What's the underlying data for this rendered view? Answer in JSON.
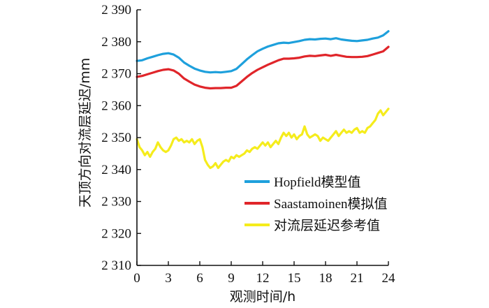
{
  "chart_data": {
    "type": "line",
    "title": "",
    "xlabel": "观测时间/h",
    "ylabel": "天顶方向对流层延迟/mm",
    "xlim": [
      0,
      24
    ],
    "ylim": [
      2310,
      2390
    ],
    "xticks": [
      0,
      3,
      6,
      9,
      12,
      15,
      18,
      21,
      24
    ],
    "xtick_labels": [
      "0",
      "3",
      "6",
      "9",
      "12",
      "15",
      "18",
      "21",
      "24"
    ],
    "yticks": [
      2310,
      2320,
      2330,
      2340,
      2350,
      2360,
      2370,
      2380,
      2390
    ],
    "ytick_labels": [
      "2 310",
      "2 320",
      "2 330",
      "2 340",
      "2 350",
      "2 360",
      "2 370",
      "2 380",
      "2 390"
    ],
    "grid": false,
    "legend_position": "lower-right",
    "series": [
      {
        "name": "Hopfield模型值",
        "color": "#1ea0dc",
        "x": [
          0,
          0.5,
          1,
          1.5,
          2,
          2.5,
          3,
          3.5,
          4,
          4.5,
          5,
          5.5,
          6,
          6.5,
          7,
          7.5,
          8,
          8.5,
          9,
          9.5,
          10,
          10.5,
          11,
          11.5,
          12,
          12.5,
          13,
          13.5,
          14,
          14.5,
          15,
          15.5,
          16,
          16.5,
          17,
          17.5,
          18,
          18.5,
          19,
          19.5,
          20,
          20.5,
          21,
          21.5,
          22,
          22.5,
          23,
          23.5,
          24
        ],
        "y": [
          2374.0,
          2374.2,
          2374.8,
          2375.3,
          2375.8,
          2376.2,
          2376.4,
          2376.0,
          2375.0,
          2373.5,
          2372.5,
          2371.6,
          2371.0,
          2370.6,
          2370.4,
          2370.5,
          2370.4,
          2370.6,
          2370.8,
          2371.5,
          2373.0,
          2374.5,
          2375.8,
          2377.0,
          2377.8,
          2378.5,
          2379.0,
          2379.5,
          2379.7,
          2379.6,
          2379.9,
          2380.2,
          2380.6,
          2380.8,
          2380.7,
          2380.9,
          2381.0,
          2380.8,
          2381.1,
          2380.7,
          2380.5,
          2380.3,
          2380.2,
          2380.4,
          2380.6,
          2381.0,
          2381.3,
          2382.0,
          2383.3
        ]
      },
      {
        "name": "Saastamoinen模拟值",
        "color": "#e0252a",
        "x": [
          0,
          0.5,
          1,
          1.5,
          2,
          2.5,
          3,
          3.5,
          4,
          4.5,
          5,
          5.5,
          6,
          6.5,
          7,
          7.5,
          8,
          8.5,
          9,
          9.5,
          10,
          10.5,
          11,
          11.5,
          12,
          12.5,
          13,
          13.5,
          14,
          14.5,
          15,
          15.5,
          16,
          16.5,
          17,
          17.5,
          18,
          18.5,
          19,
          19.5,
          20,
          20.5,
          21,
          21.5,
          22,
          22.5,
          23,
          23.5,
          24
        ],
        "y": [
          2369.0,
          2369.3,
          2369.8,
          2370.3,
          2370.8,
          2371.2,
          2371.4,
          2371.0,
          2370.0,
          2368.5,
          2367.5,
          2366.6,
          2366.0,
          2365.6,
          2365.4,
          2365.5,
          2365.5,
          2365.6,
          2365.6,
          2366.2,
          2367.6,
          2369.0,
          2370.2,
          2371.2,
          2372.0,
          2372.8,
          2373.5,
          2374.2,
          2374.7,
          2374.7,
          2374.8,
          2375.0,
          2375.4,
          2375.6,
          2375.5,
          2375.7,
          2375.9,
          2375.6,
          2375.9,
          2375.6,
          2375.3,
          2375.2,
          2375.2,
          2375.3,
          2375.5,
          2376.0,
          2376.5,
          2377.0,
          2378.4
        ]
      },
      {
        "name": "对流层延迟参考值",
        "color": "#f5ec1c",
        "x": [
          0,
          0.25,
          0.5,
          0.75,
          1,
          1.25,
          1.5,
          1.75,
          2,
          2.25,
          2.5,
          2.75,
          3,
          3.25,
          3.5,
          3.75,
          4,
          4.25,
          4.5,
          4.75,
          5,
          5.25,
          5.5,
          5.75,
          6,
          6.25,
          6.5,
          6.75,
          7,
          7.25,
          7.5,
          7.75,
          8,
          8.25,
          8.5,
          8.75,
          9,
          9.25,
          9.5,
          9.75,
          10,
          10.25,
          10.5,
          10.75,
          11,
          11.25,
          11.5,
          11.75,
          12,
          12.25,
          12.5,
          12.75,
          13,
          13.25,
          13.5,
          13.75,
          14,
          14.25,
          14.5,
          14.75,
          15,
          15.25,
          15.5,
          15.75,
          16,
          16.25,
          16.5,
          16.75,
          17,
          17.25,
          17.5,
          17.75,
          18,
          18.25,
          18.5,
          18.75,
          19,
          19.25,
          19.5,
          19.75,
          20,
          20.25,
          20.5,
          20.75,
          21,
          21.25,
          21.5,
          21.75,
          22,
          22.25,
          22.5,
          22.75,
          23,
          23.25,
          23.5,
          23.75,
          24
        ],
        "y": [
          2349.5,
          2347.0,
          2346.0,
          2344.5,
          2345.5,
          2344.0,
          2345.5,
          2346.5,
          2348.5,
          2347.0,
          2346.0,
          2345.5,
          2346.0,
          2347.5,
          2349.5,
          2350.0,
          2349.0,
          2349.5,
          2348.5,
          2349.0,
          2348.5,
          2349.5,
          2348.0,
          2349.0,
          2349.5,
          2347.0,
          2343.0,
          2341.5,
          2340.5,
          2341.0,
          2342.0,
          2340.5,
          2341.5,
          2342.5,
          2343.0,
          2342.5,
          2344.0,
          2343.5,
          2344.5,
          2344.0,
          2344.5,
          2345.0,
          2346.0,
          2345.5,
          2346.5,
          2347.0,
          2346.5,
          2347.5,
          2348.5,
          2347.5,
          2348.5,
          2347.0,
          2348.0,
          2349.0,
          2348.0,
          2350.0,
          2351.5,
          2350.5,
          2351.5,
          2350.0,
          2351.0,
          2349.5,
          2350.5,
          2351.0,
          2353.5,
          2351.0,
          2350.0,
          2350.5,
          2351.0,
          2350.5,
          2349.0,
          2350.0,
          2349.5,
          2349.0,
          2350.0,
          2351.0,
          2352.0,
          2350.5,
          2351.5,
          2352.5,
          2351.5,
          2352.0,
          2351.5,
          2352.5,
          2353.0,
          2351.5,
          2352.0,
          2351.5,
          2353.0,
          2353.5,
          2354.5,
          2355.5,
          2357.5,
          2358.5,
          2357.0,
          2358.0,
          2359.0
        ]
      }
    ]
  }
}
